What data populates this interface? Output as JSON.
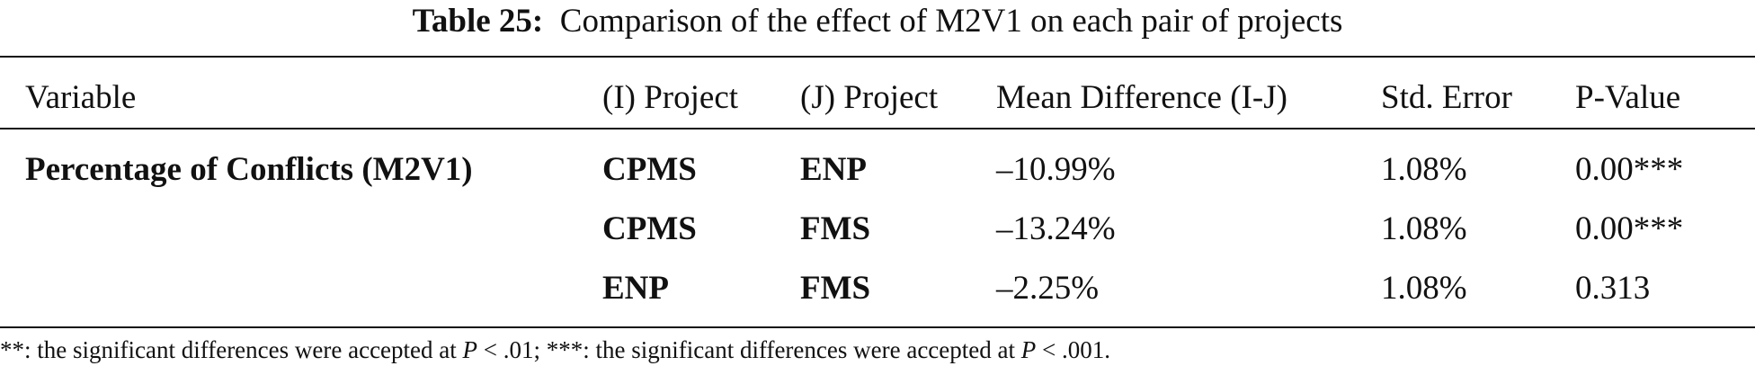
{
  "caption": {
    "label": "Table 25:",
    "text": "Comparison of the effect of M2V1 on each pair of projects"
  },
  "table": {
    "headers": {
      "variable": "Variable",
      "i_project": "(I) Project",
      "j_project": "(J) Project",
      "mean_diff": "Mean Difference (I-J)",
      "std_error": "Std. Error",
      "p_value": "P-Value"
    },
    "variable_label": "Percentage of Conflicts (M2V1)",
    "rows": [
      {
        "i": "CPMS",
        "j": "ENP",
        "mean_diff": "–10.99%",
        "std_error": "1.08%",
        "p_value": "0.00***"
      },
      {
        "i": "CPMS",
        "j": "FMS",
        "mean_diff": "–13.24%",
        "std_error": "1.08%",
        "p_value": "0.00***"
      },
      {
        "i": "ENP",
        "j": "FMS",
        "mean_diff": "–2.25%",
        "std_error": "1.08%",
        "p_value": "0.313"
      }
    ]
  },
  "footnote": {
    "part1": "**: the significant differences were accepted at ",
    "p1": "P",
    "part2": " < .01; ***: the significant differences were accepted at ",
    "p2": "P",
    "part3": " < .001."
  }
}
